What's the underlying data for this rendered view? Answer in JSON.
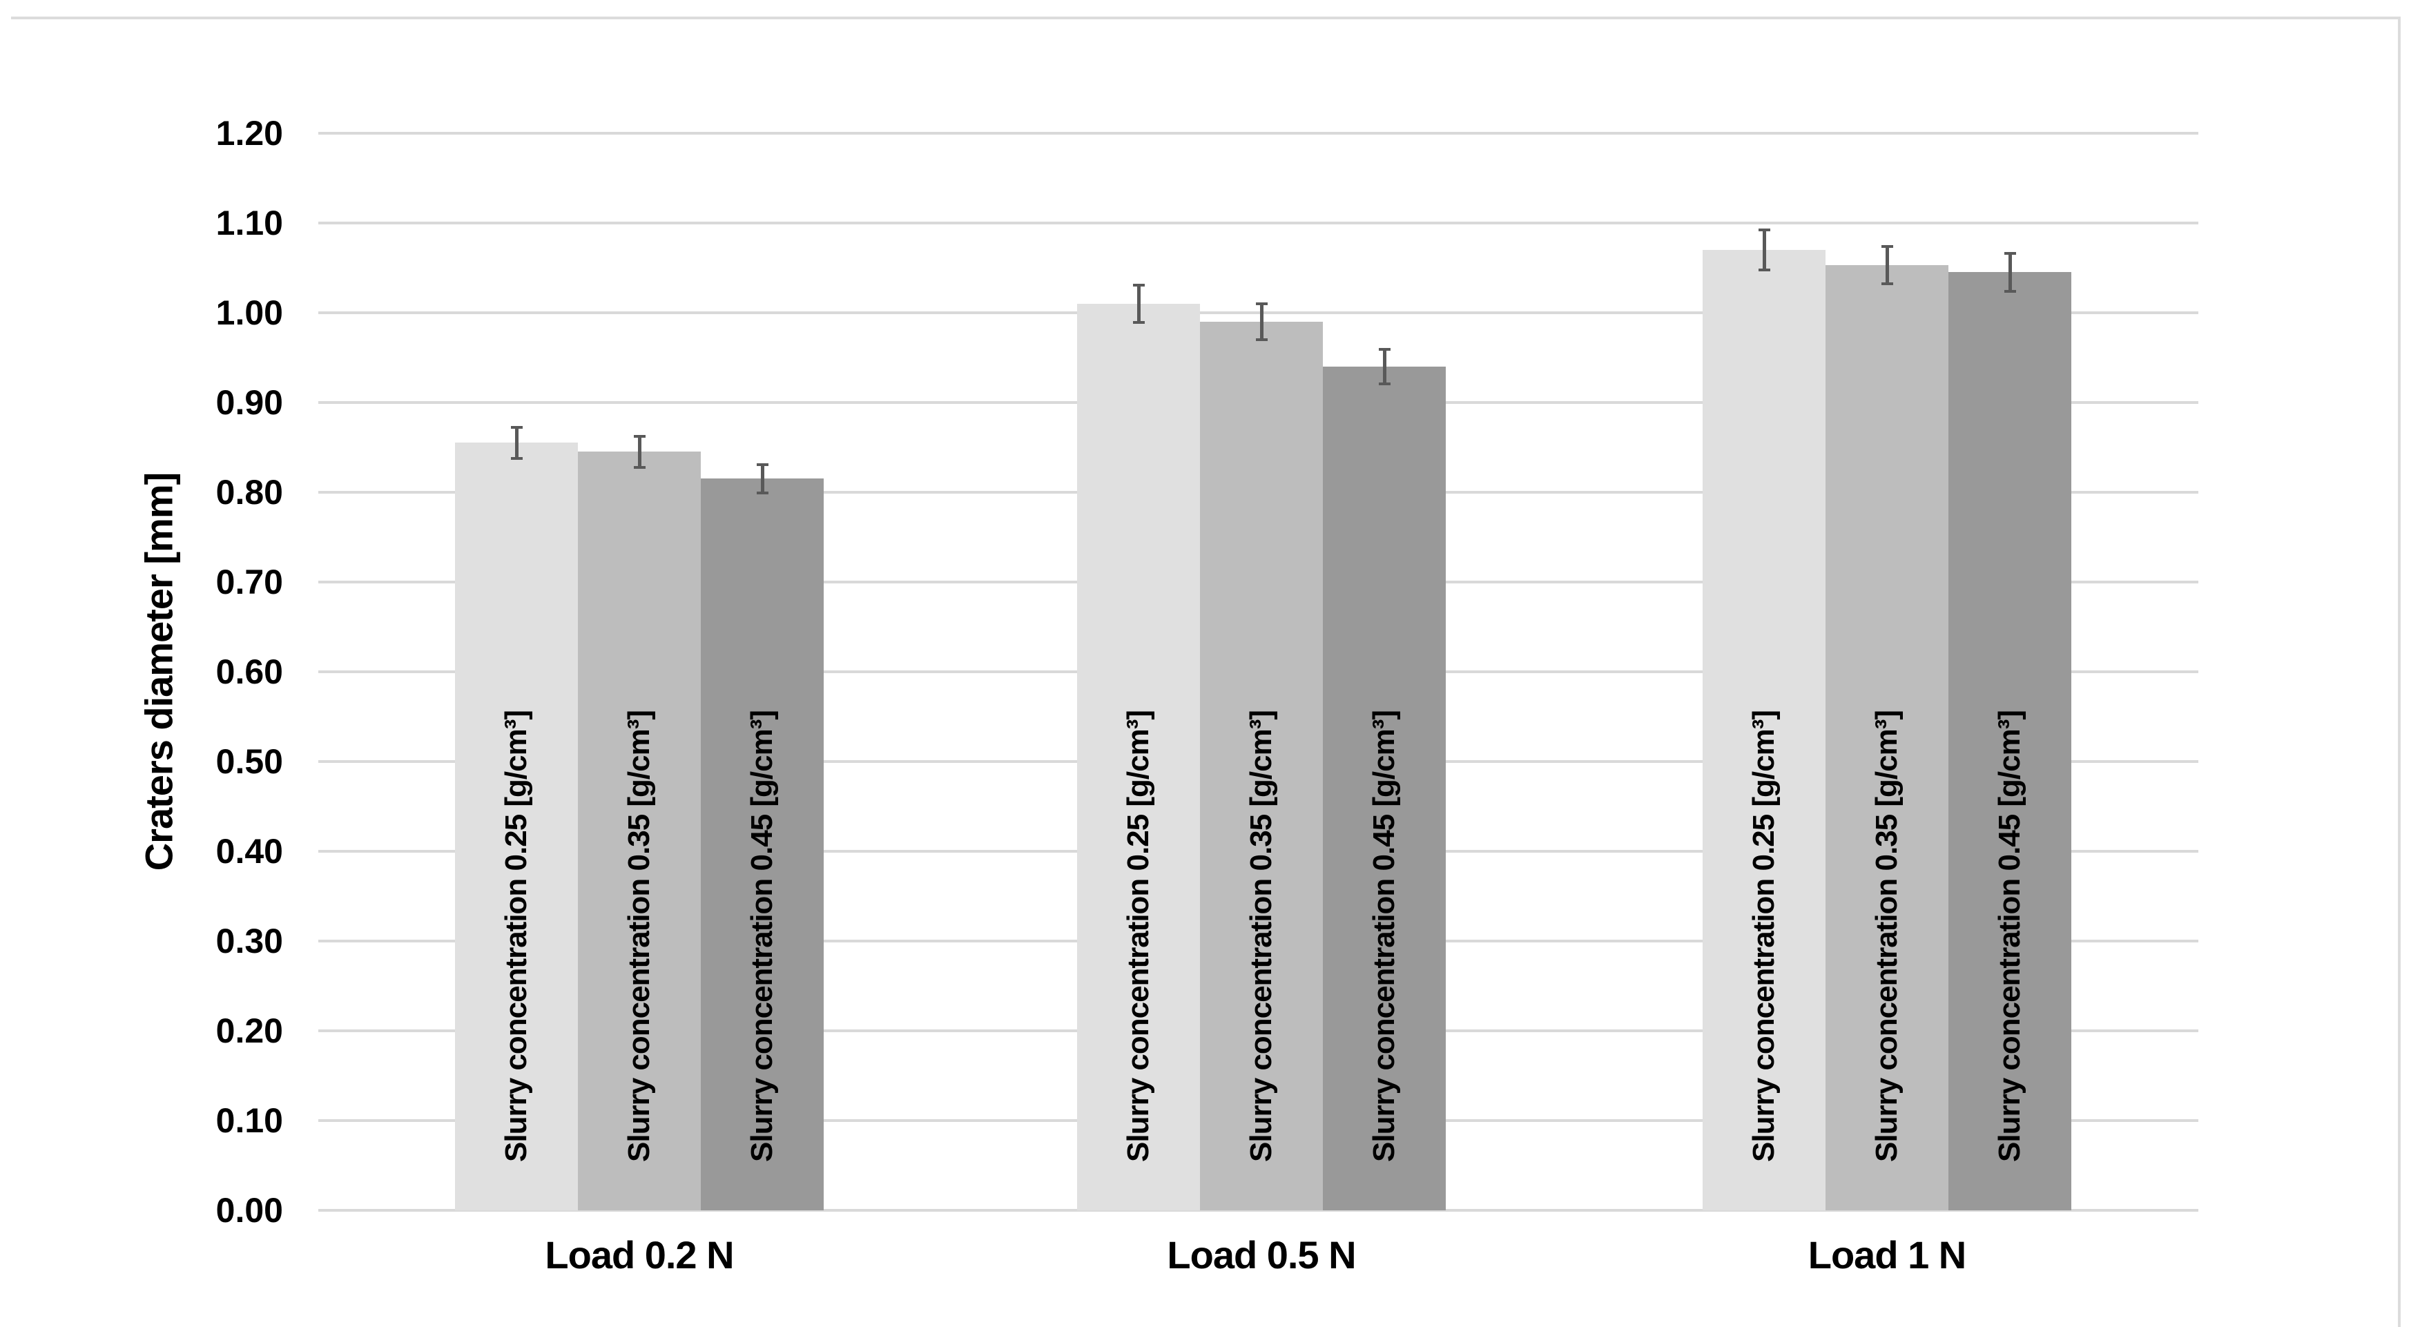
{
  "figure": {
    "y_axis_title": "Craters diameter [mm]",
    "y_tick_labels": [
      "0.00",
      "0.10",
      "0.20",
      "0.30",
      "0.40",
      "0.50",
      "0.60",
      "0.70",
      "0.80",
      "0.90",
      "1.00",
      "1.10",
      "1.20"
    ],
    "group_labels": [
      "Load 0.2 N",
      "Load 0.5 N",
      "Load 1 N"
    ],
    "colors": {
      "background": "#ffffff",
      "gridline": "#d9d9d9",
      "error_bar": "#595959",
      "figure_border": "#dcdcdc",
      "text": "#000000",
      "series": [
        "#e0e0e0",
        "#bdbdbd",
        "#999999"
      ]
    }
  },
  "chart_data": {
    "type": "bar",
    "title": "",
    "xlabel": "",
    "ylabel": "Craters diameter [mm]",
    "ylim": [
      0,
      1.2
    ],
    "ytick_step": 0.1,
    "grid": true,
    "legend_position": "none",
    "bar_text_placement": "rotated 90deg inside each bar, bottom-anchored",
    "categories": [
      "Load 0.2 N",
      "Load 0.5 N",
      "Load 1 N"
    ],
    "series": [
      {
        "name": "Slurry concentration 0.25 [g/cm³]",
        "color": "#e0e0e0",
        "values": [
          0.855,
          1.01,
          1.07
        ],
        "error": [
          0.017,
          0.021,
          0.022
        ]
      },
      {
        "name": "Slurry concentration 0.35 [g/cm³]",
        "color": "#bdbdbd",
        "values": [
          0.845,
          0.99,
          1.053
        ],
        "error": [
          0.017,
          0.02,
          0.021
        ]
      },
      {
        "name": "Slurry concentration 0.45 [g/cm³]",
        "color": "#999999",
        "values": [
          0.815,
          0.94,
          1.045
        ],
        "error": [
          0.016,
          0.019,
          0.021
        ]
      }
    ]
  }
}
